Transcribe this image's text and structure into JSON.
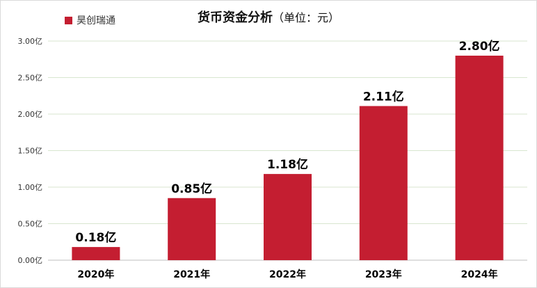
{
  "chart_data": {
    "type": "bar",
    "title": "货币资金分析",
    "subtitle": "（单位：元）",
    "xlabel": "",
    "ylabel": "",
    "categories": [
      "2020年",
      "2021年",
      "2022年",
      "2023年",
      "2024年"
    ],
    "series": [
      {
        "name": "昊创瑞通",
        "values": [
          0.18,
          0.85,
          1.18,
          2.11,
          2.8
        ],
        "data_labels": [
          "0.18亿",
          "0.85亿",
          "1.18亿",
          "2.11亿",
          "2.80亿"
        ],
        "color": "#c41e31"
      }
    ],
    "y_ticks": [
      {
        "value": 0,
        "label": "0.00亿"
      },
      {
        "value": 0.5,
        "label": "0.50亿"
      },
      {
        "value": 1.0,
        "label": "1.00亿"
      },
      {
        "value": 1.5,
        "label": "1.50亿"
      },
      {
        "value": 2.0,
        "label": "2.00亿"
      },
      {
        "value": 2.5,
        "label": "2.50亿"
      },
      {
        "value": 3.0,
        "label": "3.00亿"
      }
    ],
    "ylim": [
      0,
      3.0
    ],
    "grid": true,
    "gridline_color": "#d8e6cf",
    "legend_position": "top-left"
  }
}
